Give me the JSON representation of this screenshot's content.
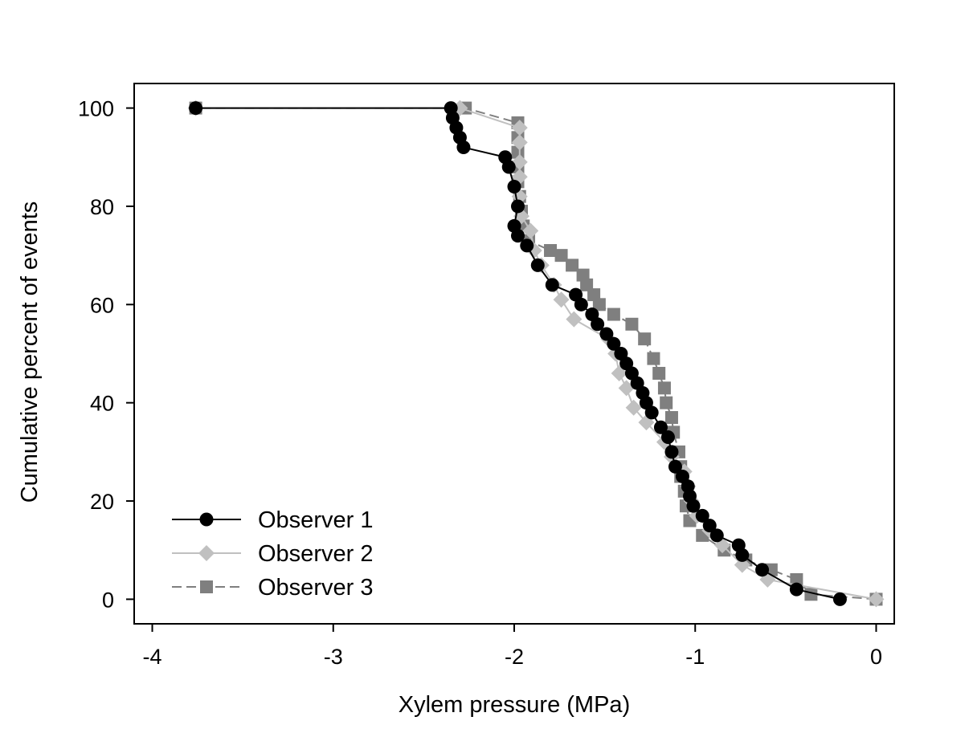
{
  "chart_data": {
    "type": "line",
    "title": "",
    "xlabel": "Xylem pressure (MPa)",
    "ylabel": "Cumulative percent of events",
    "xlim": [
      -4.1,
      0.1
    ],
    "ylim": [
      -5,
      105
    ],
    "xticks": [
      -4,
      -3,
      -2,
      -1,
      0
    ],
    "yticks": [
      0,
      20,
      40,
      60,
      80,
      100
    ],
    "grid": false,
    "legend_position": "bottom-left",
    "series": [
      {
        "name": "Observer 1",
        "color": "#000000",
        "marker": "circle",
        "line_style": "solid",
        "points": [
          [
            -0.2,
            0
          ],
          [
            -0.44,
            2
          ],
          [
            -0.63,
            6
          ],
          [
            -0.74,
            9
          ],
          [
            -0.76,
            11
          ],
          [
            -0.88,
            13
          ],
          [
            -0.92,
            15
          ],
          [
            -0.96,
            17
          ],
          [
            -1.01,
            19
          ],
          [
            -1.03,
            21
          ],
          [
            -1.04,
            23
          ],
          [
            -1.07,
            25
          ],
          [
            -1.11,
            27
          ],
          [
            -1.13,
            30
          ],
          [
            -1.15,
            33
          ],
          [
            -1.19,
            35
          ],
          [
            -1.24,
            38
          ],
          [
            -1.27,
            40
          ],
          [
            -1.29,
            42
          ],
          [
            -1.32,
            44
          ],
          [
            -1.35,
            46
          ],
          [
            -1.38,
            48
          ],
          [
            -1.41,
            50
          ],
          [
            -1.45,
            52
          ],
          [
            -1.49,
            54
          ],
          [
            -1.54,
            56
          ],
          [
            -1.57,
            58
          ],
          [
            -1.63,
            60
          ],
          [
            -1.66,
            62
          ],
          [
            -1.79,
            64
          ],
          [
            -1.87,
            68
          ],
          [
            -1.93,
            72
          ],
          [
            -1.98,
            74
          ],
          [
            -2.0,
            76
          ],
          [
            -1.98,
            80
          ],
          [
            -2.0,
            84
          ],
          [
            -2.03,
            88
          ],
          [
            -2.05,
            90
          ],
          [
            -2.28,
            92
          ],
          [
            -2.3,
            94
          ],
          [
            -2.32,
            96
          ],
          [
            -2.34,
            98
          ],
          [
            -2.35,
            100
          ],
          [
            -3.76,
            100
          ]
        ]
      },
      {
        "name": "Observer 2",
        "color": "#c0c0c0",
        "marker": "diamond",
        "line_style": "solid",
        "points": [
          [
            0,
            0
          ],
          [
            -0.6,
            4
          ],
          [
            -0.74,
            7
          ],
          [
            -0.85,
            11
          ],
          [
            -0.92,
            14
          ],
          [
            -0.99,
            17
          ],
          [
            -1.02,
            20
          ],
          [
            -1.04,
            23
          ],
          [
            -1.06,
            26
          ],
          [
            -1.13,
            29
          ],
          [
            -1.17,
            32
          ],
          [
            -1.27,
            36
          ],
          [
            -1.34,
            39
          ],
          [
            -1.38,
            43
          ],
          [
            -1.42,
            46
          ],
          [
            -1.44,
            50
          ],
          [
            -1.48,
            53
          ],
          [
            -1.67,
            57
          ],
          [
            -1.74,
            61
          ],
          [
            -1.78,
            64
          ],
          [
            -1.85,
            68
          ],
          [
            -1.89,
            71
          ],
          [
            -1.91,
            75
          ],
          [
            -1.96,
            78
          ],
          [
            -1.97,
            82
          ],
          [
            -1.97,
            86
          ],
          [
            -1.97,
            89
          ],
          [
            -1.97,
            93
          ],
          [
            -1.97,
            96
          ],
          [
            -2.3,
            100
          ],
          [
            -3.76,
            100
          ]
        ]
      },
      {
        "name": "Observer 3",
        "color": "#7f7f7f",
        "marker": "square",
        "line_style": "dashed",
        "points": [
          [
            0,
            0
          ],
          [
            -0.36,
            1
          ],
          [
            -0.44,
            4
          ],
          [
            -0.58,
            6
          ],
          [
            -0.72,
            8
          ],
          [
            -0.84,
            10
          ],
          [
            -0.96,
            13
          ],
          [
            -1.03,
            16
          ],
          [
            -1.05,
            19
          ],
          [
            -1.06,
            22
          ],
          [
            -1.08,
            25
          ],
          [
            -1.08,
            27
          ],
          [
            -1.09,
            30
          ],
          [
            -1.12,
            34
          ],
          [
            -1.13,
            37
          ],
          [
            -1.16,
            40
          ],
          [
            -1.17,
            43
          ],
          [
            -1.2,
            46
          ],
          [
            -1.23,
            49
          ],
          [
            -1.28,
            53
          ],
          [
            -1.35,
            56
          ],
          [
            -1.45,
            58
          ],
          [
            -1.53,
            60
          ],
          [
            -1.56,
            62
          ],
          [
            -1.6,
            64
          ],
          [
            -1.62,
            66
          ],
          [
            -1.68,
            68
          ],
          [
            -1.74,
            70
          ],
          [
            -1.8,
            71
          ],
          [
            -1.92,
            73
          ],
          [
            -1.95,
            76
          ],
          [
            -1.96,
            79
          ],
          [
            -1.97,
            82
          ],
          [
            -1.98,
            85
          ],
          [
            -1.98,
            88
          ],
          [
            -1.98,
            91
          ],
          [
            -1.98,
            94
          ],
          [
            -1.98,
            97
          ],
          [
            -2.27,
            100
          ],
          [
            -3.76,
            100
          ]
        ]
      }
    ]
  }
}
